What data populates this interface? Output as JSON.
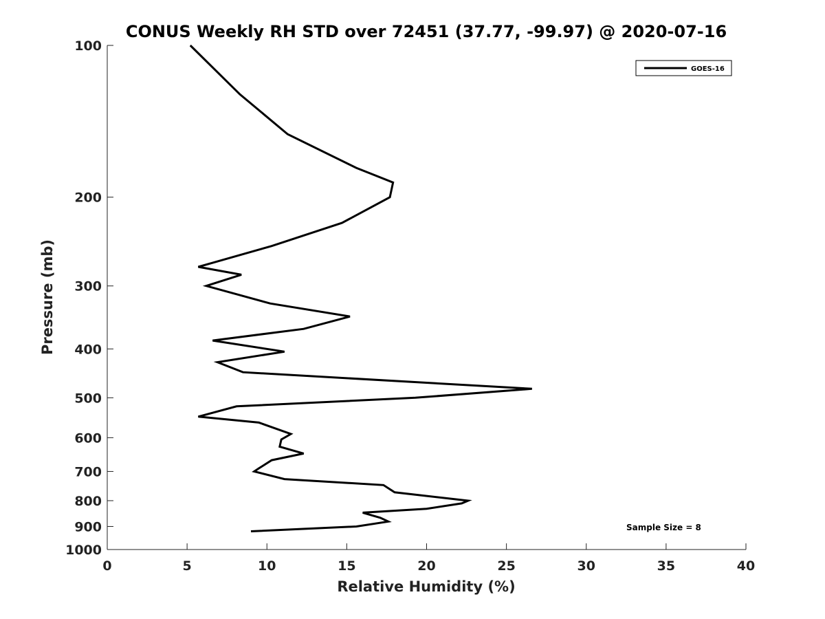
{
  "chart_data": {
    "type": "line",
    "title": "CONUS Weekly RH STD over 72451 (37.77, -99.97) @ 2020-07-16",
    "xlabel": "Relative Humidity (%)",
    "ylabel": "Pressure (mb)",
    "xlim": [
      0,
      40
    ],
    "ylim": [
      1000,
      100
    ],
    "y_scale": "log",
    "x_ticks": [
      0,
      5,
      10,
      15,
      20,
      25,
      30,
      35,
      40
    ],
    "y_ticks": [
      100,
      200,
      300,
      400,
      500,
      600,
      700,
      800,
      900,
      1000
    ],
    "x_tick_labels": [
      "0",
      "5",
      "10",
      "15",
      "20",
      "25",
      "30",
      "35",
      "40"
    ],
    "y_tick_labels": [
      "100",
      "200",
      "300",
      "400",
      "500",
      "600",
      "700",
      "800",
      "900",
      "1000"
    ],
    "grid": false,
    "legend_position": "top-right",
    "annotation": "Sample Size = 8",
    "line_color": "#000000",
    "series": [
      {
        "name": "GOES-16",
        "points": [
          [
            5.2,
            100
          ],
          [
            8.3,
            125
          ],
          [
            11.3,
            150
          ],
          [
            15.6,
            175
          ],
          [
            17.9,
            187
          ],
          [
            17.7,
            200
          ],
          [
            14.7,
            225
          ],
          [
            10.3,
            250
          ],
          [
            5.7,
            275
          ],
          [
            8.4,
            285
          ],
          [
            6.2,
            300
          ],
          [
            10.2,
            325
          ],
          [
            15.2,
            345
          ],
          [
            12.3,
            365
          ],
          [
            6.6,
            385
          ],
          [
            11.1,
            405
          ],
          [
            6.9,
            425
          ],
          [
            8.5,
            445
          ],
          [
            26.6,
            480
          ],
          [
            19.3,
            500
          ],
          [
            8.1,
            520
          ],
          [
            5.7,
            545
          ],
          [
            9.5,
            560
          ],
          [
            11.5,
            590
          ],
          [
            10.9,
            605
          ],
          [
            10.8,
            625
          ],
          [
            12.3,
            645
          ],
          [
            10.3,
            665
          ],
          [
            9.5,
            690
          ],
          [
            9.2,
            700
          ],
          [
            11.1,
            725
          ],
          [
            17.3,
            745
          ],
          [
            18.0,
            770
          ],
          [
            22.6,
            800
          ],
          [
            22.2,
            810
          ],
          [
            20.0,
            830
          ],
          [
            16.0,
            845
          ],
          [
            17.1,
            865
          ],
          [
            17.6,
            880
          ],
          [
            15.6,
            900
          ],
          [
            9.0,
            920
          ]
        ]
      }
    ]
  }
}
